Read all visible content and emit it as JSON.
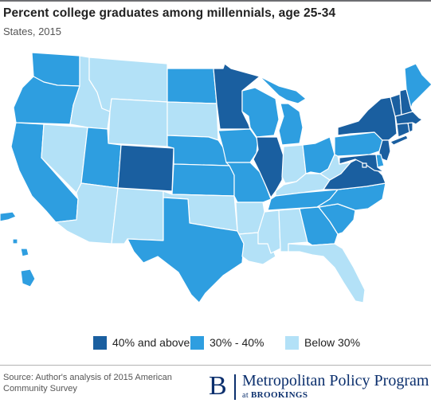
{
  "title": "Percent college graduates among millennials, age 25-34",
  "subtitle": "States, 2015",
  "colors": {
    "high": "#1a5fa0",
    "mid": "#2e9ee0",
    "low": "#b3e1f7"
  },
  "legend": [
    {
      "key": "high",
      "label": "40% and above"
    },
    {
      "key": "mid",
      "label": "30% - 40%"
    },
    {
      "key": "low",
      "label": "Below 30%"
    }
  ],
  "states": {
    "WA": "mid",
    "OR": "mid",
    "CA": "mid",
    "NV": "low",
    "ID": "low",
    "MT": "low",
    "WY": "low",
    "UT": "mid",
    "AZ": "low",
    "NM": "low",
    "CO": "high",
    "ND": "mid",
    "SD": "low",
    "NE": "mid",
    "KS": "mid",
    "OK": "low",
    "TX": "mid",
    "MN": "high",
    "IA": "mid",
    "MO": "mid",
    "AR": "low",
    "LA": "low",
    "WI": "mid",
    "IL": "high",
    "MI": "mid",
    "IN": "low",
    "OH": "mid",
    "KY": "low",
    "TN": "mid",
    "MS": "low",
    "AL": "low",
    "GA": "mid",
    "FL": "low",
    "SC": "mid",
    "NC": "mid",
    "VA": "high",
    "WV": "low",
    "PA": "mid",
    "NY": "high",
    "VT": "high",
    "NH": "high",
    "ME": "mid",
    "MA": "high",
    "CT": "high",
    "RI": "high",
    "NJ": "high",
    "DE": "mid",
    "MD": "high",
    "DC": "high",
    "AK": "mid",
    "HI": "mid"
  },
  "source": "Source: Author's analysis of 2015 American Community Survey",
  "brand": {
    "letter": "B",
    "name": "Metropolitan Policy Program",
    "at": "at",
    "org": "BROOKINGS"
  }
}
